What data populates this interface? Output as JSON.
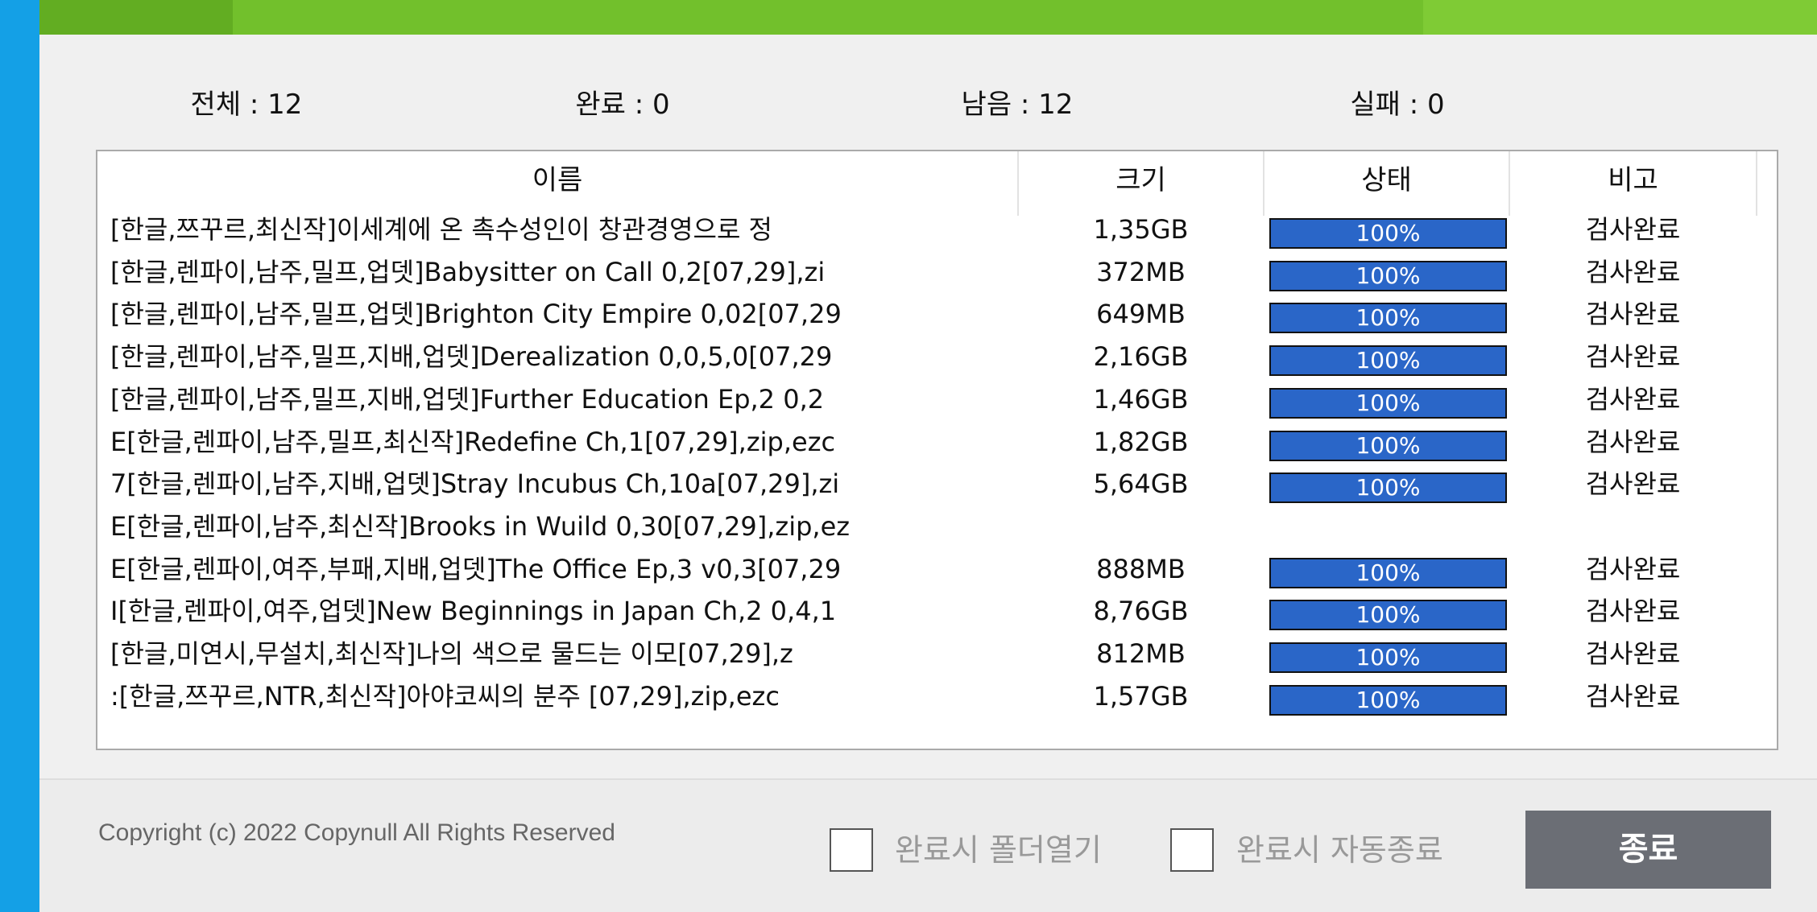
{
  "stats": [
    "전체 : 12",
    "완료 : 0",
    "남음 : 12",
    "실패 : 0"
  ],
  "table": {
    "headers": [
      "이름",
      "크기",
      "상태",
      "비고"
    ],
    "rows": [
      [
        "[한글,쯔꾸르,최신작]이세계에 온 촉수성인이 창관경영으로 정",
        "1,35GB",
        "100%",
        "검사완료"
      ],
      [
        "[한글,렌파이,남주,밀프,업뎃]Babysitter on Call 0,2[07,29],zi",
        "372MB",
        "100%",
        "검사완료"
      ],
      [
        "[한글,렌파이,남주,밀프,업뎃]Brighton City Empire 0,02[07,29",
        "649MB",
        "100%",
        "검사완료"
      ],
      [
        "[한글,렌파이,남주,밀프,지배,업뎃]Derealization 0,0,5,0[07,29",
        "2,16GB",
        "100%",
        "검사완료"
      ],
      [
        "[한글,렌파이,남주,밀프,지배,업뎃]Further Education Ep,2 0,2",
        "1,46GB",
        "100%",
        "검사완료"
      ],
      [
        "E[한글,렌파이,남주,밀프,최신작]Redefine Ch,1[07,29],zip,ezc",
        "1,82GB",
        "100%",
        "검사완료"
      ],
      [
        "7[한글,렌파이,남주,지배,업뎃]Stray Incubus Ch,10a[07,29],zi",
        "5,64GB",
        "100%",
        "검사완료"
      ],
      "E[한글,렌파이,남주,최신작]Brooks in Wuild 0,30[07,29],zip,ez",
      [
        "E[한글,렌파이,여주,부패,지배,업뎃]The Office Ep,3 v0,3[07,29",
        "888MB",
        "100%",
        "검사완료"
      ],
      [
        "I[한글,렌파이,여주,업뎃]New Beginnings in Japan Ch,2 0,4,1",
        "8,76GB",
        "100%",
        "검사완료"
      ],
      [
        "[한글,미연시,무설치,최신작]나의 색으로 물드는 이모[07,29],z",
        "812MB",
        "100%",
        "검사완료"
      ],
      [
        ":[한글,쯔꾸르,NTR,최신작]아야코씨의 분주 [07,29],zip,ezc",
        "1,57GB",
        "100%",
        "검사완료"
      ]
    ]
  },
  "footer": {
    "copyright": "Copyright (c) 2022 Copynull All Rights Reserved",
    "option1": "완료시 폴더열기",
    "option2": "완료시 자동종료",
    "button": "종료"
  }
}
